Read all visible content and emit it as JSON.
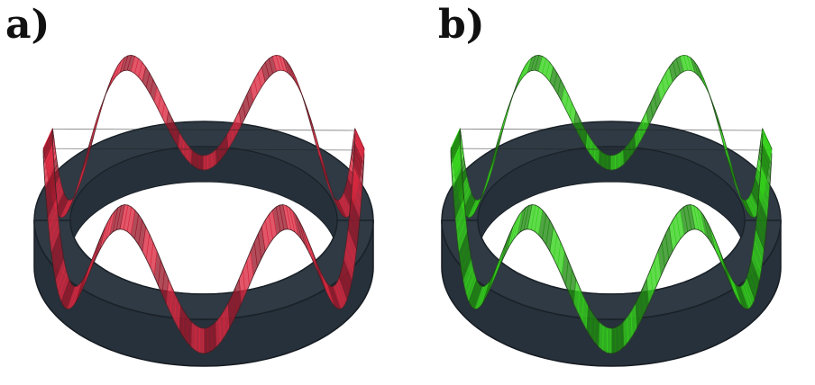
{
  "panels": [
    {
      "label": "a)",
      "ribbon_color": "#d8283f",
      "ribbon_dark": "#9a1a2c"
    },
    {
      "label": "b)",
      "ribbon_color": "#33d11a",
      "ribbon_dark": "#1f8a10"
    }
  ],
  "ring_color": "#2f3a44"
}
